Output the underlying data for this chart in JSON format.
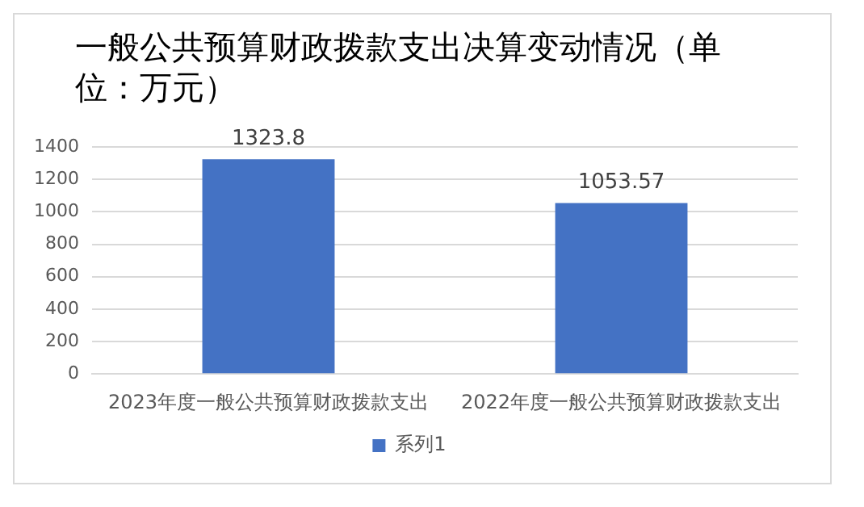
{
  "chart_data": {
    "type": "bar",
    "title": "一般公共预算财政拨款支出决算变动情况（单位：万元）",
    "categories": [
      "2023年度一般公共预算财政拨款支出",
      "2022年度一般公共预算财政拨款支出"
    ],
    "series": [
      {
        "name": "系列1",
        "color": "#4472c4",
        "values": [
          1323.8,
          1053.57
        ]
      }
    ],
    "ylim": [
      0,
      1400
    ],
    "yticks": [
      0,
      200,
      400,
      600,
      800,
      1000,
      1200,
      1400
    ],
    "grid": "y",
    "legend": "bottom",
    "data_labels": true
  }
}
